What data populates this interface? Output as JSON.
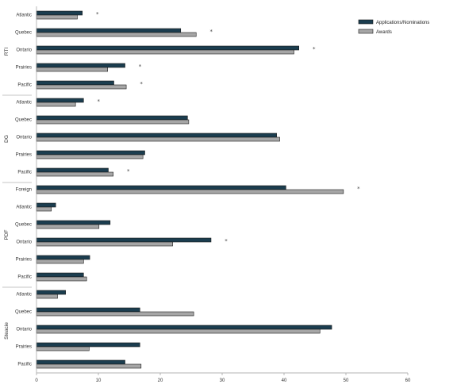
{
  "chart_data": {
    "type": "bar",
    "orientation": "horizontal",
    "groups": [
      {
        "name": "RTI",
        "rows": [
          {
            "label": "Atlantic",
            "values": [
              7.4,
              6.6
            ],
            "significant": true
          },
          {
            "label": "Quebec",
            "values": [
              23.3,
              25.8
            ],
            "significant": true
          },
          {
            "label": "Ontario",
            "values": [
              42.4,
              41.6
            ],
            "significant": true
          },
          {
            "label": "Prairies",
            "values": [
              14.3,
              11.5
            ],
            "significant": true
          },
          {
            "label": "Pacific",
            "values": [
              12.5,
              14.5
            ],
            "significant": true
          }
        ]
      },
      {
        "name": "DG",
        "rows": [
          {
            "label": "Atlantic",
            "values": [
              7.6,
              6.3
            ],
            "significant": true
          },
          {
            "label": "Quebec",
            "values": [
              24.4,
              24.6
            ],
            "significant": false
          },
          {
            "label": "Ontario",
            "values": [
              38.8,
              39.3
            ],
            "significant": false
          },
          {
            "label": "Prairies",
            "values": [
              17.5,
              17.2
            ],
            "significant": false
          },
          {
            "label": "Pacific",
            "values": [
              11.6,
              12.4
            ],
            "significant": true
          }
        ]
      },
      {
        "name": "PDF",
        "rows": [
          {
            "label": "Foreign",
            "values": [
              40.3,
              49.6
            ],
            "significant": true
          },
          {
            "label": "Atlantic",
            "values": [
              3.1,
              2.4
            ],
            "significant": false
          },
          {
            "label": "Quebec",
            "values": [
              11.9,
              10.1
            ],
            "significant": false
          },
          {
            "label": "Ontario",
            "values": [
              28.2,
              22.0
            ],
            "significant": true
          },
          {
            "label": "Prairies",
            "values": [
              8.6,
              7.6
            ],
            "significant": false
          },
          {
            "label": "Pacific",
            "values": [
              7.6,
              8.1
            ],
            "significant": false
          }
        ]
      },
      {
        "name": "Steacie",
        "rows": [
          {
            "label": "Atlantic",
            "values": [
              4.7,
              3.4
            ],
            "significant": false
          },
          {
            "label": "Quebec",
            "values": [
              16.7,
              25.4
            ],
            "significant": false
          },
          {
            "label": "Ontario",
            "values": [
              47.7,
              45.8
            ],
            "significant": false
          },
          {
            "label": "Prairies",
            "values": [
              16.7,
              8.5
            ],
            "significant": false
          },
          {
            "label": "Pacific",
            "values": [
              14.3,
              16.9
            ],
            "significant": false
          }
        ]
      }
    ],
    "series": [
      {
        "name": "Applications/Nominations",
        "color": "#1b3d4f"
      },
      {
        "name": "Awards",
        "color": "#a6a6a6"
      }
    ],
    "significance_marker": "*",
    "xlim": [
      0,
      60
    ],
    "xticks": [
      0,
      10,
      20,
      30,
      40,
      50,
      60
    ],
    "grid": false,
    "legend_position": "top-right"
  }
}
